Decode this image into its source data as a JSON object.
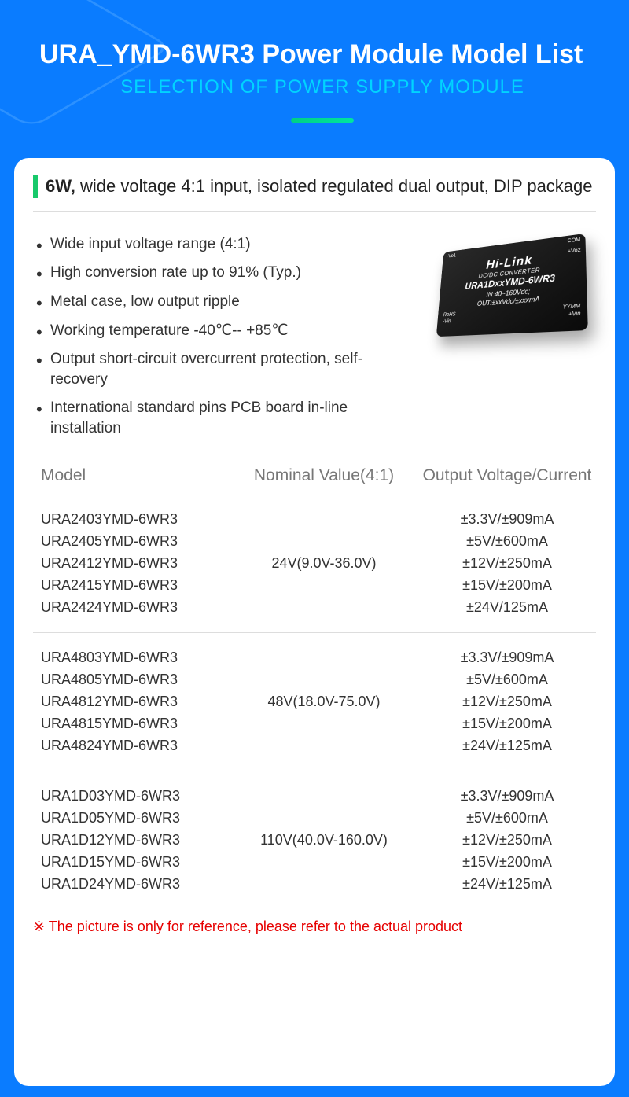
{
  "header": {
    "title": "URA_YMD-6WR3 Power Module Model List",
    "subtitle": "SELECTION OF POWER SUPPLY MODULE"
  },
  "section_title_bold": "6W,",
  "section_title_rest": " wide voltage 4:1 input, isolated regulated dual output, DIP package",
  "features": [
    "Wide input voltage range (4:1)",
    "High conversion rate up to 91% (Typ.)",
    "Metal case, low output ripple",
    "Working temperature -40℃-- +85℃",
    "Output short-circuit overcurrent protection, self-recovery",
    "International standard pins PCB board in-line installation"
  ],
  "module_label": {
    "brand": "Hi-Link",
    "sub": "DC/DC  CONVERTER",
    "model": "URA1DxxYMD-6WR3",
    "in": "IN:40~160Vdc;",
    "out": "OUT:±xxVdc/±xxxmA",
    "rohs": "RoHS",
    "neg_vin": "-Vin",
    "pos_vin": "+Vin",
    "yymm": "YYMM",
    "vo1": "-Vo1",
    "com": "COM",
    "vo2": "+Vo2"
  },
  "columns": [
    "Model",
    "Nominal Value(4:1)",
    "Output Voltage/Current"
  ],
  "groups": [
    {
      "nominal": "24V(9.0V-36.0V)",
      "rows": [
        {
          "model": "URA2403YMD-6WR3",
          "out": "±3.3V/±909mA"
        },
        {
          "model": "URA2405YMD-6WR3",
          "out": "±5V/±600mA"
        },
        {
          "model": "URA2412YMD-6WR3",
          "out": "±12V/±250mA"
        },
        {
          "model": "URA2415YMD-6WR3",
          "out": "±15V/±200mA"
        },
        {
          "model": "URA2424YMD-6WR3",
          "out": "±24V/125mA"
        }
      ]
    },
    {
      "nominal": "48V(18.0V-75.0V)",
      "rows": [
        {
          "model": "URA4803YMD-6WR3",
          "out": "±3.3V/±909mA"
        },
        {
          "model": "URA4805YMD-6WR3",
          "out": "±5V/±600mA"
        },
        {
          "model": "URA4812YMD-6WR3",
          "out": "±12V/±250mA"
        },
        {
          "model": "URA4815YMD-6WR3",
          "out": "±15V/±200mA"
        },
        {
          "model": "URA4824YMD-6WR3",
          "out": "±24V/±125mA"
        }
      ]
    },
    {
      "nominal": "110V(40.0V-160.0V)",
      "rows": [
        {
          "model": "URA1D03YMD-6WR3",
          "out": "±3.3V/±909mA"
        },
        {
          "model": "URA1D05YMD-6WR3",
          "out": "±5V/±600mA"
        },
        {
          "model": "URA1D12YMD-6WR3",
          "out": "±12V/±250mA"
        },
        {
          "model": "URA1D15YMD-6WR3",
          "out": "±15V/±200mA"
        },
        {
          "model": "URA1D24YMD-6WR3",
          "out": "±24V/±125mA"
        }
      ]
    }
  ],
  "footnote": "※ The picture is only for reference, please refer to the actual product",
  "colors": {
    "page_bg": "#0a7cff",
    "subtitle": "#00d4ff",
    "accent_green": "#18c96b",
    "footnote_red": "#e60000"
  }
}
